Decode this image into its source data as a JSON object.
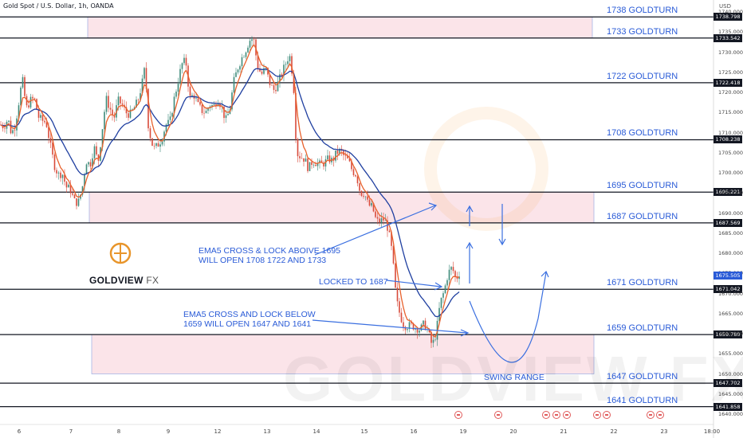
{
  "header": {
    "symbol": "Gold Spot / U.S. Dollar, 1h, OANDA",
    "currency": "USD"
  },
  "brand": {
    "name": "GOLDVIEW",
    "suffix": " FX",
    "watermark": "GOLDVIEW FX",
    "color": "#e8952b"
  },
  "colors": {
    "levels": "#131722",
    "zones": "#f9d9df",
    "annotations": "#2a5bd7",
    "ema_fast": "#e8612c",
    "ema_slow": "#1f3fa0",
    "up": "#3d8a7a",
    "down": "#d84a3a"
  },
  "levels": [
    {
      "price": 1738.798,
      "label": "1738 GOLDTURN",
      "tag": "1738.798"
    },
    {
      "price": 1733.542,
      "label": "1733 GOLDTURN",
      "tag": "1733.542"
    },
    {
      "price": 1722.418,
      "label": "1722 GOLDTURN",
      "tag": "1722.418"
    },
    {
      "price": 1708.238,
      "label": "1708 GOLDTURN",
      "tag": "1708.238"
    },
    {
      "price": 1695.221,
      "label": "1695 GOLDTURN",
      "tag": "1695.221"
    },
    {
      "price": 1687.569,
      "label": "1687 GOLDTURN",
      "tag": "1687.569"
    },
    {
      "price": 1671.042,
      "label": "1671 GOLDTURN",
      "tag": "1671.042"
    },
    {
      "price": 1659.78,
      "label": "1659 GOLDTURN",
      "tag": "1659.780"
    },
    {
      "price": 1647.702,
      "label": "1647 GOLDTURN",
      "tag": "1647.702"
    },
    {
      "price": 1641.858,
      "label": "1641 GOLDTURN",
      "tag": "1641.858"
    }
  ],
  "zones": [
    {
      "from": 1733.542,
      "to": 1738.798
    },
    {
      "from": 1687.569,
      "to": 1695.221
    },
    {
      "from": 1650.0,
      "to": 1659.78
    }
  ],
  "current_price": "1675.505",
  "annotations": {
    "ema_up_1": "EMA5 CROSS & LOCK ABOIVE 1695",
    "ema_up_2": "WILL OPEN 1708 1722 AND 1733",
    "locked": "LOCKED TO 1687",
    "ema_down_1": "EMA5 CROSS AND LOCK BELOW",
    "ema_down_2": "1659 WILL OPEN 1647 AND 1641",
    "swing": "SWING RANGE"
  },
  "chart_data": {
    "type": "candlestick",
    "title": "Gold Spot / U.S. Dollar, 1h, OANDA",
    "ylim": [
      1640,
      1743
    ],
    "y_ticks": [
      "1740.000",
      "1735.000",
      "1730.000",
      "1725.000",
      "1720.000",
      "1715.000",
      "1710.000",
      "1705.000",
      "1700.000",
      "1695.000",
      "1690.000",
      "1685.000",
      "1680.000",
      "1675.000",
      "1670.000",
      "1665.000",
      "1660.000",
      "1655.000",
      "1650.000",
      "1645.000",
      "1640.000"
    ],
    "x_ticks": [
      "6",
      "7",
      "8",
      "9",
      "12",
      "13",
      "14",
      "15",
      "16",
      "19",
      "20",
      "21",
      "22",
      "23",
      "18:00"
    ],
    "price_path": [
      [
        0,
        1712.0
      ],
      [
        5,
        1711.5
      ],
      [
        10,
        1713.5
      ],
      [
        14,
        1710.0
      ],
      [
        18,
        1711.0
      ],
      [
        22,
        1715.5
      ],
      [
        28,
        1723.5
      ],
      [
        33,
        1716.0
      ],
      [
        38,
        1718.0
      ],
      [
        43,
        1718.5
      ],
      [
        48,
        1714.0
      ],
      [
        53,
        1713.0
      ],
      [
        58,
        1712.5
      ],
      [
        63,
        1707.0
      ],
      [
        68,
        1702.0
      ],
      [
        73,
        1699.5
      ],
      [
        78,
        1700.0
      ],
      [
        83,
        1696.5
      ],
      [
        88,
        1696.0
      ],
      [
        93,
        1693.0
      ],
      [
        98,
        1692.5
      ],
      [
        103,
        1696.0
      ],
      [
        108,
        1703.0
      ],
      [
        113,
        1702.0
      ],
      [
        118,
        1706.5
      ],
      [
        123,
        1702.5
      ],
      [
        128,
        1710.5
      ],
      [
        133,
        1718.5
      ],
      [
        138,
        1716.0
      ],
      [
        143,
        1713.5
      ],
      [
        148,
        1718.0
      ],
      [
        153,
        1717.0
      ],
      [
        158,
        1715.0
      ],
      [
        163,
        1714.5
      ],
      [
        168,
        1716.0
      ],
      [
        173,
        1718.0
      ],
      [
        178,
        1722.0
      ],
      [
        182,
        1726.5
      ],
      [
        186,
        1712.0
      ],
      [
        190,
        1707.5
      ],
      [
        194,
        1706.0
      ],
      [
        198,
        1707.0
      ],
      [
        203,
        1708.5
      ],
      [
        208,
        1712.0
      ],
      [
        213,
        1712.5
      ],
      [
        218,
        1718.0
      ],
      [
        223,
        1722.5
      ],
      [
        228,
        1727.0
      ],
      [
        233,
        1728.0
      ],
      [
        238,
        1718.5
      ],
      [
        243,
        1719.5
      ],
      [
        248,
        1717.0
      ],
      [
        253,
        1715.5
      ],
      [
        258,
        1715.0
      ],
      [
        263,
        1717.0
      ],
      [
        268,
        1716.5
      ],
      [
        273,
        1718.5
      ],
      [
        278,
        1716.5
      ],
      [
        283,
        1713.0
      ],
      [
        288,
        1715.5
      ],
      [
        293,
        1722.5
      ],
      [
        298,
        1726.0
      ],
      [
        303,
        1728.5
      ],
      [
        308,
        1730.5
      ],
      [
        313,
        1733.0
      ],
      [
        318,
        1733.5
      ],
      [
        323,
        1726.5
      ],
      [
        328,
        1724.5
      ],
      [
        333,
        1726.0
      ],
      [
        338,
        1722.5
      ],
      [
        343,
        1720.5
      ],
      [
        348,
        1722.0
      ],
      [
        353,
        1724.5
      ],
      [
        358,
        1727.0
      ],
      [
        363,
        1729.5
      ],
      [
        368,
        1723.0
      ],
      [
        372,
        1705.0
      ],
      [
        377,
        1704.0
      ],
      [
        382,
        1703.5
      ],
      [
        387,
        1701.0
      ],
      [
        392,
        1703.0
      ],
      [
        397,
        1702.5
      ],
      [
        402,
        1702.0
      ],
      [
        407,
        1702.5
      ],
      [
        412,
        1703.5
      ],
      [
        417,
        1703.0
      ],
      [
        422,
        1705.0
      ],
      [
        427,
        1705.5
      ],
      [
        432,
        1704.0
      ],
      [
        437,
        1703.0
      ],
      [
        442,
        1700.5
      ],
      [
        447,
        1699.5
      ],
      [
        452,
        1695.0
      ],
      [
        457,
        1695.0
      ],
      [
        462,
        1692.0
      ],
      [
        467,
        1691.5
      ],
      [
        472,
        1688.0
      ],
      [
        477,
        1688.0
      ],
      [
        482,
        1688.5
      ],
      [
        487,
        1686.0
      ],
      [
        492,
        1680.0
      ],
      [
        497,
        1668.5
      ],
      [
        502,
        1664.5
      ],
      [
        507,
        1662.0
      ],
      [
        512,
        1662.0
      ],
      [
        517,
        1662.0
      ],
      [
        522,
        1661.5
      ],
      [
        527,
        1661.0
      ],
      [
        532,
        1662.5
      ],
      [
        537,
        1660.5
      ],
      [
        542,
        1657.0
      ],
      [
        547,
        1660.0
      ],
      [
        552,
        1667.5
      ],
      [
        557,
        1670.5
      ],
      [
        562,
        1675.0
      ],
      [
        567,
        1676.5
      ],
      [
        572,
        1673.5
      ],
      [
        577,
        1675.5
      ]
    ]
  }
}
